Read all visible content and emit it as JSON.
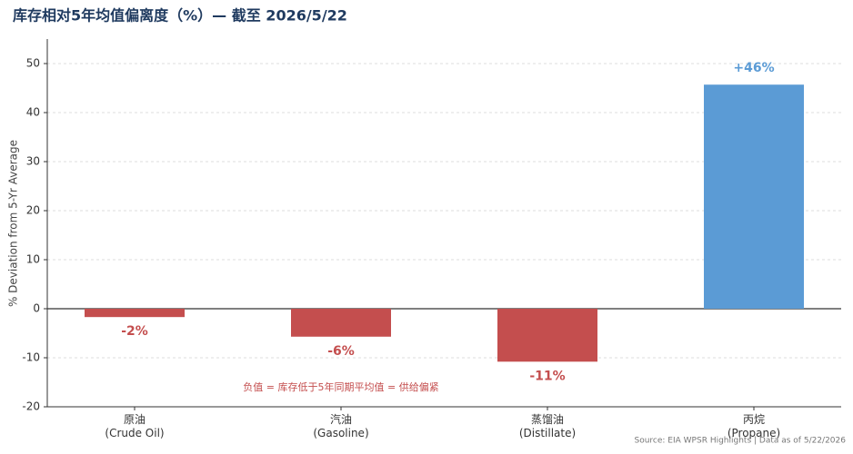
{
  "chart_data": {
    "type": "bar",
    "title": "库存相对5年均值偏离度（%）— 截至 2026/5/22",
    "y_label": "% Deviation from 5-Yr Average",
    "categories": [
      "原油\n(Crude Oil)",
      "汽油\n(Gasoline)",
      "蒸馏油\n(Distillate)",
      "丙烷\n(Propane)"
    ],
    "values": [
      -1.7,
      -5.7,
      -10.8,
      45.7
    ],
    "value_labels": [
      "-2%",
      "-6%",
      "-11%",
      "+46%"
    ],
    "colors": [
      "#c44e4e",
      "#c44e4e",
      "#c44e4e",
      "#5b9bd5"
    ],
    "ylim": [
      -20,
      55
    ],
    "yticks": [
      -20,
      -10,
      0,
      10,
      20,
      30,
      40,
      50
    ],
    "grid": true,
    "annotation": "负值 = 库存低于5年同期平均值 = 供给偏紧",
    "source": "Source: EIA WPSR Highlights | Data as of 5/22/2026"
  }
}
